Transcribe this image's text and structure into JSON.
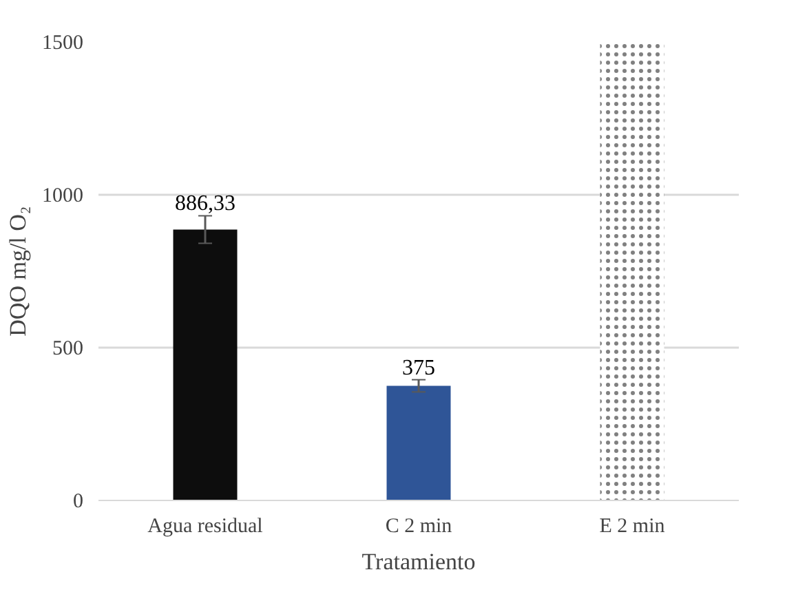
{
  "chart_data": {
    "type": "bar",
    "xlabel": "Tratamiento",
    "ylabel": "DQO mg/l O₂",
    "categories": [
      "Agua residual",
      "C 2 min",
      "E 2 min"
    ],
    "values": [
      886.33,
      375,
      1500
    ],
    "colors": [
      "#0d0d0d",
      "#2f5597",
      "#808080"
    ],
    "errors": [
      45,
      20,
      null
    ],
    "value_labels": [
      "886,33",
      "375",
      null
    ],
    "ylim": [
      0,
      1500
    ],
    "yticks": [
      0,
      500,
      1000,
      1500
    ],
    "grid": "y"
  }
}
